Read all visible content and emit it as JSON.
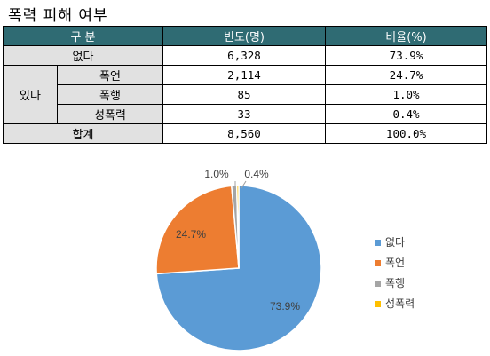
{
  "title": "폭력 피해 여부",
  "table": {
    "headers": [
      "구 분",
      "빈도(명)",
      "비율(%)"
    ],
    "rows": [
      {
        "group": "없다",
        "label": "",
        "freq": "6,328",
        "ratio": "73.9%"
      },
      {
        "group": "있다",
        "label": "폭언",
        "freq": "2,114",
        "ratio": "24.7%"
      },
      {
        "group": "있다",
        "label": "폭행",
        "freq": "85",
        "ratio": "1.0%"
      },
      {
        "group": "있다",
        "label": "성폭력",
        "freq": "33",
        "ratio": "0.4%"
      }
    ],
    "total": {
      "label": "합계",
      "freq": "8,560",
      "ratio": "100.0%"
    }
  },
  "chart_data": {
    "type": "pie",
    "categories": [
      "없다",
      "폭언",
      "폭행",
      "성폭력"
    ],
    "values": [
      73.9,
      24.7,
      1.0,
      0.4
    ],
    "data_labels": [
      "73.9%",
      "24.7%",
      "1.0%",
      "0.4%"
    ],
    "colors": [
      "#5b9bd5",
      "#ed7d31",
      "#a5a5a5",
      "#ffc000"
    ],
    "legend_position": "right",
    "start_angle_deg": 0,
    "direction": "clockwise"
  }
}
